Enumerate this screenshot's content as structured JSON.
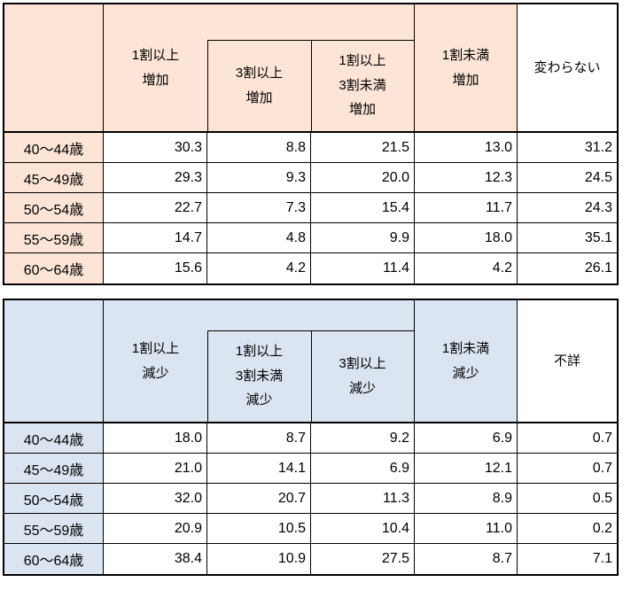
{
  "colors": {
    "increase_accent": "#fce4d6",
    "decrease_accent": "#dbe5f1",
    "grid_line_color": "#000000",
    "text_color": "#000000",
    "plain_cell_background": "#ffffff"
  },
  "chart_data": [
    {
      "type": "table",
      "name": "increase-table",
      "accent_color": "#fce4d6",
      "header": {
        "corner": "",
        "total": "1割以上\n増加",
        "sub1": "3割以上\n増加",
        "sub2": "1割以上\n3割未満\n増加",
        "under10": "1割未満\n増加",
        "last": "変わらない"
      },
      "rows": [
        {
          "label": "40～44歳",
          "values": [
            "30.3",
            "8.8",
            "21.5",
            "13.0",
            "31.2"
          ]
        },
        {
          "label": "45～49歳",
          "values": [
            "29.3",
            "9.3",
            "20.0",
            "12.3",
            "24.5"
          ]
        },
        {
          "label": "50～54歳",
          "values": [
            "22.7",
            "7.3",
            "15.4",
            "11.7",
            "24.3"
          ]
        },
        {
          "label": "55～59歳",
          "values": [
            "14.7",
            "4.8",
            "9.9",
            "18.0",
            "35.1"
          ]
        },
        {
          "label": "60～64歳",
          "values": [
            "15.6",
            "4.2",
            "11.4",
            "4.2",
            "26.1"
          ]
        }
      ]
    },
    {
      "type": "table",
      "name": "decrease-table",
      "accent_color": "#dbe5f1",
      "header": {
        "corner": "",
        "total": "1割以上\n減少",
        "sub1": "1割以上\n3割未満\n減少",
        "sub2": "3割以上\n減少",
        "under10": "1割未満\n減少",
        "last": "不詳"
      },
      "rows": [
        {
          "label": "40～44歳",
          "values": [
            "18.0",
            "8.7",
            "9.2",
            "6.9",
            "0.7"
          ]
        },
        {
          "label": "45～49歳",
          "values": [
            "21.0",
            "14.1",
            "6.9",
            "12.1",
            "0.7"
          ]
        },
        {
          "label": "50～54歳",
          "values": [
            "32.0",
            "20.7",
            "11.3",
            "8.9",
            "0.5"
          ]
        },
        {
          "label": "55～59歳",
          "values": [
            "20.9",
            "10.5",
            "10.4",
            "11.0",
            "0.2"
          ]
        },
        {
          "label": "60～64歳",
          "values": [
            "38.4",
            "10.9",
            "27.5",
            "8.7",
            "7.1"
          ]
        }
      ]
    }
  ]
}
